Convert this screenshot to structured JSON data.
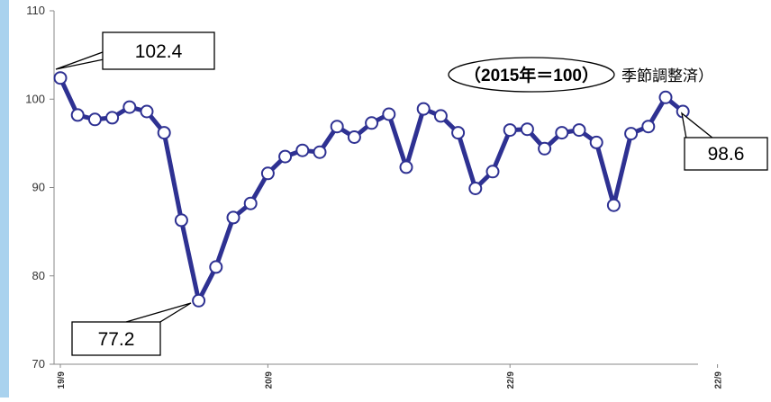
{
  "chart_data": {
    "type": "line",
    "title": "",
    "xlabel": "",
    "ylabel": "",
    "ylim": [
      70,
      110
    ],
    "yticks": [
      70,
      80,
      90,
      100,
      110
    ],
    "x_tick_labels": [
      "19/9",
      "20/9",
      "22/9",
      "22/9"
    ],
    "x_tick_indices": [
      0,
      12,
      26,
      38
    ],
    "grid": false,
    "series": [
      {
        "values": [
          102.4,
          98.2,
          97.7,
          97.9,
          99.1,
          98.6,
          96.2,
          86.3,
          77.2,
          81.0,
          86.6,
          88.2,
          91.6,
          93.5,
          94.2,
          94.0,
          96.9,
          95.7,
          97.3,
          98.3,
          92.3,
          98.9,
          98.1,
          96.2,
          89.9,
          91.8,
          96.5,
          96.6,
          94.4,
          96.2,
          96.5,
          95.1,
          88.0,
          96.1,
          96.9,
          100.2,
          98.6
        ]
      }
    ],
    "annotations": {
      "max_label": "102.4",
      "min_label": "77.2",
      "last_label": "98.6",
      "base_label": "（2015年＝100）",
      "adjust_label": "季節調整済）"
    },
    "colors": {
      "line": "#2e3192",
      "marker_fill": "#ffffff",
      "left_bar": "#a9d2ee"
    }
  }
}
